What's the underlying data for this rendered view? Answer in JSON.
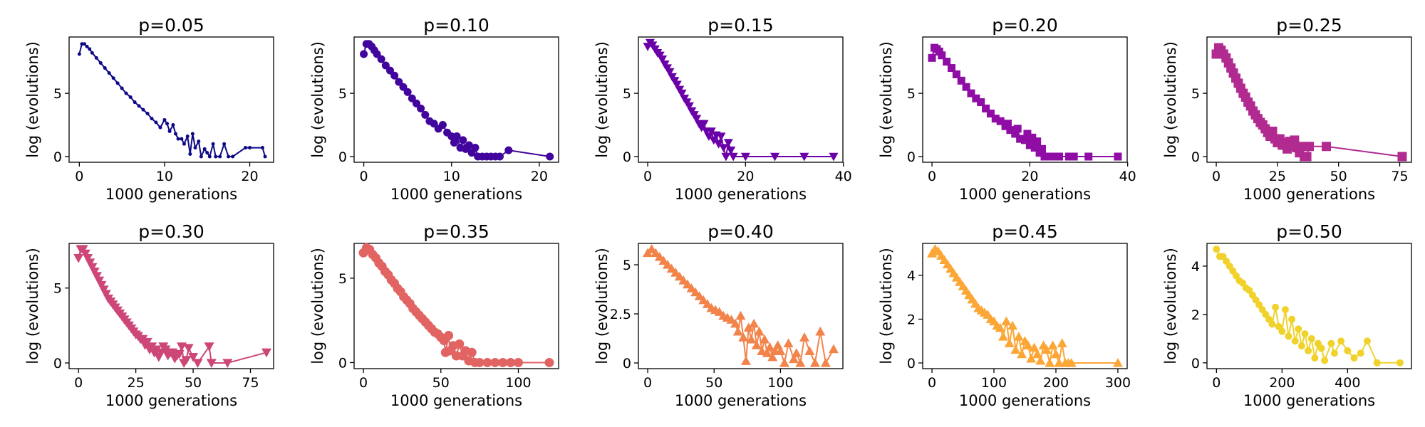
{
  "chart_data": [
    {
      "type": "line",
      "title": "p=0.05",
      "xlabel": "1000 generations",
      "ylabel": "log (evolutions)",
      "color": "#0d0887",
      "marker": "circle",
      "marker_size": 2.5,
      "xlim": [
        -1.2,
        22.8
      ],
      "ylim": [
        -0.45,
        9.45
      ],
      "xticks": [
        0,
        10,
        20
      ],
      "yticks": [
        0,
        5
      ],
      "x": [
        0,
        0.3,
        0.6,
        0.9,
        1.2,
        1.5,
        2,
        2.5,
        3,
        3.5,
        4,
        4.5,
        5,
        5.5,
        6,
        6.5,
        7,
        7.5,
        8,
        8.5,
        9,
        9.5,
        10,
        10.3,
        10.6,
        11,
        11.3,
        11.6,
        12,
        12.3,
        12.7,
        13,
        13.3,
        13.6,
        14,
        14.3,
        14.7,
        15,
        15.3,
        15.7,
        16,
        16.5,
        17,
        17.5,
        18,
        19.5,
        20,
        21.5,
        21.8
      ],
      "y": [
        8.1,
        8.9,
        8.9,
        8.7,
        8.5,
        8.2,
        7.8,
        7.4,
        7.0,
        6.6,
        6.2,
        5.8,
        5.4,
        5.0,
        4.7,
        4.3,
        4.0,
        3.7,
        3.4,
        3.0,
        2.7,
        2.3,
        2.9,
        2.6,
        2.0,
        2.5,
        1.8,
        1.4,
        1.4,
        1.0,
        1.6,
        0.2,
        1.8,
        0.7,
        1.2,
        0,
        0.6,
        0.3,
        0,
        1.0,
        0,
        0,
        1.0,
        0,
        0,
        0.7,
        0.7,
        0.7,
        0
      ]
    },
    {
      "type": "line",
      "title": "p=0.10",
      "xlabel": "1000 generations",
      "ylabel": "log (evolutions)",
      "color": "#41049d",
      "marker": "circle",
      "marker_size": 5.5,
      "xlim": [
        -1.1,
        22.2
      ],
      "ylim": [
        -0.45,
        9.45
      ],
      "xticks": [
        0,
        10,
        20
      ],
      "yticks": [
        0,
        5
      ],
      "x": [
        0,
        0.3,
        0.6,
        0.9,
        1.2,
        1.5,
        2,
        2.5,
        3,
        3.5,
        4,
        4.5,
        5,
        5.5,
        6,
        6.5,
        7,
        7.5,
        8,
        8.5,
        9,
        9.5,
        10,
        10.3,
        10.6,
        11,
        11.3,
        11.6,
        12,
        12.3,
        12.7,
        13,
        13.5,
        14,
        14.5,
        15,
        15.5,
        16.5,
        21.2
      ],
      "y": [
        8.1,
        8.9,
        8.9,
        8.7,
        8.4,
        8.1,
        7.7,
        7.2,
        6.8,
        6.4,
        5.9,
        5.5,
        5.1,
        4.6,
        4.2,
        3.8,
        3.3,
        2.8,
        2.6,
        2.2,
        2.5,
        1.9,
        1.6,
        1.1,
        1.6,
        0.7,
        1.3,
        0.6,
        0.9,
        0.3,
        0.7,
        0,
        0,
        0,
        0,
        0,
        0,
        0.5,
        0
      ]
    },
    {
      "type": "line",
      "title": "p=0.15",
      "xlabel": "1000 generations",
      "ylabel": "log (evolutions)",
      "color": "#6a00a8",
      "marker": "triangle-down",
      "marker_size": 6.5,
      "xlim": [
        -1.9,
        39.9
      ],
      "ylim": [
        -0.45,
        9.45
      ],
      "xticks": [
        0,
        20,
        40
      ],
      "yticks": [
        0,
        5
      ],
      "x": [
        0,
        0.5,
        1,
        1.5,
        2,
        2.5,
        3,
        3.5,
        4,
        4.5,
        5,
        5.5,
        6,
        6.5,
        7,
        7.5,
        8,
        8.5,
        9,
        9.5,
        10,
        10.5,
        11,
        11.5,
        12,
        12.5,
        13,
        13.5,
        14,
        14.5,
        15,
        15.5,
        16,
        16.5,
        17,
        17.5,
        20,
        26,
        32,
        38
      ],
      "y": [
        8.7,
        9.0,
        8.8,
        8.5,
        8.2,
        8.0,
        7.7,
        7.3,
        7.0,
        6.7,
        6.3,
        6.0,
        5.7,
        5.3,
        5.0,
        4.6,
        4.3,
        4.0,
        3.6,
        3.3,
        3.0,
        2.6,
        2.3,
        2.6,
        2.0,
        1.6,
        2.0,
        1.3,
        1.7,
        1.0,
        1.6,
        0.7,
        0,
        1.1,
        0.5,
        0,
        0,
        0,
        0,
        0
      ]
    },
    {
      "type": "line",
      "title": "p=0.20",
      "xlabel": "1000 generations",
      "ylabel": "log (evolutions)",
      "color": "#8f0da4",
      "marker": "square",
      "marker_size": 5.5,
      "xlim": [
        -1.9,
        39.9
      ],
      "ylim": [
        -0.45,
        9.45
      ],
      "xticks": [
        0,
        20,
        40
      ],
      "yticks": [
        0,
        5
      ],
      "x": [
        0,
        0.5,
        1,
        1.5,
        2,
        3,
        4,
        5,
        6,
        7,
        8,
        9,
        10,
        11,
        12,
        13,
        14,
        15,
        15.5,
        16,
        17,
        17.5,
        18,
        19,
        19.5,
        20,
        20.5,
        21,
        21.5,
        22,
        22.5,
        23,
        24,
        25,
        26,
        28,
        29,
        32,
        38
      ],
      "y": [
        7.8,
        8.6,
        8.5,
        8.3,
        8.0,
        7.5,
        7.0,
        6.5,
        6.0,
        5.5,
        5.0,
        4.6,
        4.3,
        3.8,
        3.4,
        3.0,
        2.8,
        2.4,
        2.6,
        2.1,
        1.8,
        2.2,
        1.4,
        1.3,
        1.8,
        0.9,
        1.5,
        0.7,
        1.2,
        0.3,
        0.6,
        0,
        0,
        0,
        0,
        0,
        0,
        0,
        0
      ]
    },
    {
      "type": "line",
      "title": "p=0.25",
      "xlabel": "1000 generations",
      "ylabel": "log (evolutions)",
      "color": "#b12a90",
      "marker": "square",
      "marker_size": 6.5,
      "xlim": [
        -3.8,
        79.8
      ],
      "ylim": [
        -0.45,
        9.45
      ],
      "xticks": [
        0,
        25,
        50,
        75
      ],
      "yticks": [
        0,
        5
      ],
      "x": [
        0,
        1,
        2,
        3,
        4,
        5,
        6,
        7,
        8,
        9,
        10,
        11,
        12,
        13,
        14,
        15,
        16,
        17,
        18,
        19,
        20,
        21,
        22,
        23,
        24,
        25,
        26,
        27,
        28,
        29,
        30,
        31,
        32,
        33,
        34,
        35,
        36,
        37,
        38,
        45,
        76
      ],
      "y": [
        8.1,
        8.6,
        8.4,
        8.1,
        7.8,
        7.4,
        7.0,
        6.6,
        6.2,
        5.8,
        5.4,
        5.0,
        4.7,
        4.3,
        4.0,
        3.6,
        3.3,
        3.0,
        2.7,
        2.5,
        2.2,
        1.9,
        1.6,
        2.0,
        1.4,
        1.1,
        1.4,
        0.9,
        1.1,
        0.6,
        1.2,
        0.8,
        1.3,
        0.7,
        0.3,
        0.8,
        0,
        0,
        0.8,
        0.8,
        0
      ]
    },
    {
      "type": "line",
      "title": "p=0.30",
      "xlabel": "1000 generations",
      "ylabel": "log (evolutions)",
      "color": "#cc4778",
      "marker": "triangle-down",
      "marker_size": 7,
      "xlim": [
        -4.1,
        85.1
      ],
      "ylim": [
        -0.38,
        7.98
      ],
      "xticks": [
        0,
        25,
        50,
        75
      ],
      "yticks": [
        0,
        5
      ],
      "x": [
        0,
        1,
        2,
        3,
        4,
        5,
        6,
        7,
        8,
        9,
        10,
        11,
        12,
        13,
        14,
        15,
        16,
        17,
        18,
        19,
        20,
        21,
        22,
        23,
        24,
        25,
        26,
        27,
        28,
        29,
        30,
        31,
        32,
        33,
        34,
        35,
        36,
        37,
        38,
        39,
        40,
        41,
        42,
        43,
        44,
        45,
        46,
        47,
        48,
        50,
        52,
        57,
        58,
        65,
        82
      ],
      "y": [
        7.0,
        7.6,
        7.6,
        7.3,
        7.0,
        6.7,
        6.4,
        6.1,
        5.8,
        5.5,
        5.2,
        4.9,
        4.6,
        4.3,
        4.1,
        3.9,
        3.7,
        3.5,
        3.3,
        3.1,
        2.9,
        2.7,
        2.5,
        2.3,
        2.1,
        1.9,
        1.8,
        1.6,
        1.6,
        1.2,
        1.4,
        0.9,
        1.1,
        0.7,
        0.9,
        0.4,
        0.7,
        1.1,
        0.9,
        0.5,
        0.7,
        0.7,
        0.3,
        0.5,
        0.6,
        1.1,
        0,
        0.2,
        1.0,
        0.4,
        0,
        1.1,
        0,
        0,
        0.7
      ]
    },
    {
      "type": "line",
      "title": "p=0.35",
      "xlabel": "1000 generations",
      "ylabel": "log (evolutions)",
      "color": "#e16462",
      "marker": "circle",
      "marker_size": 6.5,
      "xlim": [
        -6,
        126
      ],
      "ylim": [
        -0.36,
        7.06
      ],
      "xticks": [
        0,
        50,
        100
      ],
      "yticks": [
        0,
        5
      ],
      "x": [
        0,
        2,
        4,
        6,
        8,
        10,
        12,
        14,
        16,
        18,
        20,
        22,
        24,
        26,
        28,
        30,
        32,
        34,
        36,
        38,
        40,
        42,
        44,
        46,
        48,
        50,
        52,
        53,
        55,
        56,
        58,
        60,
        62,
        64,
        66,
        68,
        70,
        72,
        75,
        80,
        85,
        90,
        95,
        100,
        120
      ],
      "y": [
        6.5,
        6.8,
        6.7,
        6.4,
        6.2,
        5.9,
        5.7,
        5.4,
        5.2,
        4.9,
        4.7,
        4.4,
        4.2,
        3.9,
        3.7,
        3.5,
        3.2,
        3.0,
        2.8,
        2.6,
        2.4,
        2.2,
        2.0,
        1.8,
        1.7,
        1.5,
        1.3,
        0.6,
        1.6,
        0.7,
        1.0,
        0.4,
        1.1,
        0.4,
        0.7,
        0.1,
        0.6,
        0,
        0,
        0,
        0,
        0,
        0,
        0,
        0
      ]
    },
    {
      "type": "line",
      "title": "p=0.40",
      "xlabel": "1000 generations",
      "ylabel": "log (evolutions)",
      "color": "#f2844b",
      "marker": "triangle-up",
      "marker_size": 7,
      "xlim": [
        -7,
        147
      ],
      "ylim": [
        -0.29,
        6.09
      ],
      "xticks": [
        0,
        50,
        100
      ],
      "yticks": [
        0,
        2.5,
        5
      ],
      "x": [
        0,
        3,
        6,
        9,
        12,
        15,
        18,
        21,
        24,
        27,
        30,
        33,
        36,
        39,
        42,
        45,
        48,
        51,
        54,
        57,
        60,
        63,
        66,
        68,
        70,
        72,
        74,
        76,
        78,
        80,
        82,
        84,
        86,
        88,
        90,
        92,
        94,
        96,
        98,
        100,
        103,
        106,
        110,
        112,
        115,
        118,
        122,
        126,
        130,
        134,
        140
      ],
      "y": [
        5.6,
        5.8,
        5.6,
        5.4,
        5.2,
        5.0,
        4.8,
        4.6,
        4.4,
        4.2,
        4.0,
        3.8,
        3.6,
        3.4,
        3.2,
        3.0,
        2.8,
        2.7,
        2.6,
        2.4,
        2.3,
        2.2,
        2.0,
        1.6,
        2.4,
        1.3,
        0.1,
        1.8,
        1.2,
        2.0,
        0.9,
        1.6,
        0.6,
        1.2,
        0.5,
        0.8,
        0.3,
        0.6,
        0.9,
        0.6,
        0,
        1.0,
        0.2,
        0.5,
        0,
        1.3,
        0.6,
        0,
        1.6,
        0,
        0.7
      ]
    },
    {
      "type": "line",
      "title": "p=0.45",
      "xlabel": "1000 generations",
      "ylabel": "log (evolutions)",
      "color": "#fca636",
      "marker": "triangle-up",
      "marker_size": 7,
      "xlim": [
        -15,
        315
      ],
      "ylim": [
        -0.26,
        5.46
      ],
      "xticks": [
        0,
        100,
        200,
        300
      ],
      "yticks": [
        0,
        2,
        4
      ],
      "x": [
        0,
        5,
        10,
        15,
        20,
        25,
        30,
        35,
        40,
        45,
        50,
        55,
        60,
        65,
        70,
        75,
        80,
        85,
        90,
        95,
        100,
        105,
        110,
        115,
        120,
        125,
        130,
        135,
        140,
        145,
        150,
        155,
        160,
        165,
        170,
        175,
        180,
        185,
        190,
        195,
        200,
        205,
        210,
        215,
        220,
        225,
        300
      ],
      "y": [
        5.0,
        5.2,
        5.1,
        4.9,
        4.7,
        4.5,
        4.3,
        4.1,
        3.9,
        3.7,
        3.5,
        3.3,
        3.1,
        2.9,
        2.7,
        2.5,
        2.4,
        2.3,
        2.2,
        2.0,
        1.9,
        1.7,
        1.6,
        1.2,
        1.9,
        0.9,
        1.7,
        0.6,
        1.2,
        0.4,
        1.0,
        0.8,
        0.2,
        0.7,
        0.4,
        0.1,
        0.8,
        0.6,
        0,
        0.8,
        0.4,
        0,
        0.9,
        0,
        0,
        0,
        0
      ]
    },
    {
      "type": "line",
      "title": "p=0.50",
      "xlabel": "1000 generations",
      "ylabel": "log (evolutions)",
      "color": "#f0d22b",
      "marker": "circle",
      "marker_size": 5,
      "xlim": [
        -29,
        595
      ],
      "ylim": [
        -0.24,
        4.94
      ],
      "xticks": [
        0,
        200,
        400
      ],
      "yticks": [
        0,
        2,
        4
      ],
      "x": [
        0,
        10,
        20,
        30,
        40,
        50,
        60,
        70,
        80,
        90,
        100,
        110,
        120,
        130,
        140,
        150,
        160,
        170,
        180,
        190,
        200,
        210,
        220,
        230,
        240,
        250,
        260,
        270,
        280,
        290,
        300,
        310,
        320,
        330,
        350,
        360,
        380,
        400,
        420,
        440,
        460,
        490,
        560
      ],
      "y": [
        4.7,
        4.4,
        4.4,
        4.2,
        4.0,
        3.8,
        3.6,
        3.4,
        3.3,
        3.1,
        3.0,
        2.8,
        2.6,
        2.4,
        2.2,
        2.0,
        1.8,
        1.6,
        2.3,
        1.5,
        1.3,
        2.2,
        1.1,
        1.8,
        0.9,
        1.4,
        0.7,
        1.2,
        0.5,
        1.0,
        0.2,
        0.8,
        0.6,
        0.1,
        0.8,
        0.4,
        0.9,
        0.5,
        0.2,
        0.4,
        0.9,
        0,
        0
      ]
    }
  ]
}
